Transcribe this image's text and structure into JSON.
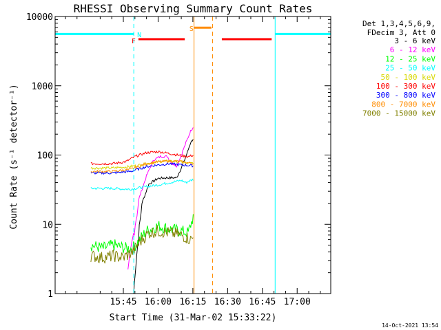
{
  "chart_data": {
    "type": "line",
    "title": "RHESSI Observing Summary Count Rates",
    "xlabel": "Start Time (31-Mar-02 15:33:22)",
    "ylabel": "Count Rate (s⁻¹ detector⁻¹)",
    "ylog": true,
    "ylim": [
      1,
      10000
    ],
    "xlim_minutes": [
      15.56,
      110.5
    ],
    "x_ticks": [
      {
        "label": "15:45",
        "minute": 45
      },
      {
        "label": "16:00",
        "minute": 60
      },
      {
        "label": "16:15",
        "minute": 75
      },
      {
        "label": "16:30",
        "minute": 90
      },
      {
        "label": "16:45",
        "minute": 105
      },
      {
        "label": "17:00",
        "minute": 120
      }
    ],
    "y_ticks": [
      "1",
      "10",
      "100",
      "1000",
      "10000"
    ],
    "legend": {
      "header": [
        "Det 1,3,4,5,6,9,",
        "FDecim 3, Att 0"
      ],
      "entries": [
        {
          "label": "3 - 6 keV",
          "color": "#000000"
        },
        {
          "label": "6 - 12 keV",
          "color": "#ff00ff"
        },
        {
          "label": "12 - 25 keV",
          "color": "#00ff00"
        },
        {
          "label": "25 - 50 keV",
          "color": "#00ffff"
        },
        {
          "label": "50 - 100 keV",
          "color": "#d8d800"
        },
        {
          "label": "100 - 300 keV",
          "color": "#ff0000"
        },
        {
          "label": "300 - 800 keV",
          "color": "#0000ff"
        },
        {
          "label": "800 - 7000 keV",
          "color": "#ff8c00"
        },
        {
          "label": "7000 - 15000 keV",
          "color": "#808000"
        }
      ]
    },
    "series": [
      {
        "name": "3 - 6 keV",
        "color": "#000000",
        "points": [
          [
            49.5,
            1
          ],
          [
            50,
            2
          ],
          [
            53,
            20
          ],
          [
            56,
            38
          ],
          [
            60,
            46
          ],
          [
            64,
            47
          ],
          [
            68,
            47
          ],
          [
            70,
            65
          ],
          [
            72,
            95
          ],
          [
            74,
            150
          ],
          [
            75.5,
            180
          ],
          [
            89,
            500
          ],
          [
            92,
            560
          ],
          [
            95,
            470
          ],
          [
            100,
            280
          ],
          [
            104,
            150
          ],
          [
            107,
            100
          ],
          [
            109,
            80
          ],
          [
            111,
            60
          ],
          [
            113,
            55
          ],
          [
            116,
            54
          ],
          [
            120,
            52
          ],
          [
            125,
            50
          ],
          [
            130,
            48
          ],
          [
            134,
            45
          ]
        ]
      },
      {
        "name": "6 - 12 keV",
        "color": "#ff00ff",
        "points": [
          [
            47,
            2
          ],
          [
            49,
            6
          ],
          [
            52,
            25
          ],
          [
            55,
            50
          ],
          [
            58,
            85
          ],
          [
            61,
            95
          ],
          [
            64,
            95
          ],
          [
            66,
            75
          ],
          [
            68,
            70
          ],
          [
            70,
            100
          ],
          [
            72,
            150
          ],
          [
            74,
            220
          ],
          [
            75.5,
            270
          ],
          [
            88,
            1150
          ],
          [
            92,
            1350
          ],
          [
            95,
            1100
          ],
          [
            100,
            550
          ],
          [
            104,
            260
          ],
          [
            107,
            130
          ],
          [
            109,
            80
          ],
          [
            110,
            20
          ],
          [
            111,
            8
          ],
          [
            113,
            5
          ],
          [
            115,
            3.5
          ],
          [
            118,
            3
          ]
        ]
      },
      {
        "name": "12 - 25 keV",
        "color": "#00ff00",
        "points": [
          [
            31,
            5
          ],
          [
            36,
            4.5
          ],
          [
            41,
            5
          ],
          [
            46,
            4.5
          ],
          [
            49,
            4.5
          ],
          [
            52,
            6
          ],
          [
            55,
            8
          ],
          [
            60,
            9.5
          ],
          [
            65,
            8.5
          ],
          [
            70,
            8
          ],
          [
            73,
            7.5
          ],
          [
            75.5,
            14
          ],
          [
            88,
            48
          ],
          [
            91,
            80
          ],
          [
            93,
            70
          ],
          [
            95,
            55
          ],
          [
            98,
            30
          ],
          [
            101,
            20
          ],
          [
            104,
            15
          ],
          [
            107,
            10.5
          ],
          [
            110,
            6
          ],
          [
            113,
            4
          ],
          [
            118,
            3
          ],
          [
            122,
            2.5
          ],
          [
            134,
            2.3
          ]
        ]
      },
      {
        "name": "25 - 50 keV",
        "color": "#00ffff",
        "points": [
          [
            31,
            33
          ],
          [
            40,
            33
          ],
          [
            48,
            32
          ],
          [
            55,
            35
          ],
          [
            60,
            37
          ],
          [
            65,
            40
          ],
          [
            70,
            43
          ],
          [
            72,
            40
          ],
          [
            75.5,
            45
          ],
          [
            88,
            37
          ],
          [
            92,
            34
          ],
          [
            98,
            33
          ],
          [
            105,
            33
          ],
          [
            110,
            32
          ],
          [
            118,
            32
          ],
          [
            125,
            31
          ],
          [
            134,
            31
          ]
        ]
      },
      {
        "name": "50 - 100 keV",
        "color": "#d8d800",
        "points": [
          [
            31,
            65
          ],
          [
            40,
            65
          ],
          [
            48,
            68
          ],
          [
            55,
            75
          ],
          [
            60,
            80
          ],
          [
            65,
            82
          ],
          [
            70,
            80
          ],
          [
            73,
            75
          ],
          [
            75.5,
            78
          ],
          [
            88,
            62
          ],
          [
            92,
            60
          ],
          [
            98,
            60
          ],
          [
            105,
            58
          ],
          [
            110,
            57
          ],
          [
            115,
            52
          ],
          [
            120,
            48
          ],
          [
            125,
            46
          ],
          [
            134,
            45
          ]
        ]
      },
      {
        "name": "100 - 300 keV",
        "color": "#ff0000",
        "points": [
          [
            31,
            75
          ],
          [
            40,
            75
          ],
          [
            46,
            80
          ],
          [
            50,
            95
          ],
          [
            55,
            108
          ],
          [
            60,
            112
          ],
          [
            65,
            105
          ],
          [
            70,
            98
          ],
          [
            73,
            95
          ],
          [
            75.5,
            100
          ],
          [
            88,
            88
          ],
          [
            92,
            92
          ],
          [
            98,
            95
          ],
          [
            105,
            90
          ],
          [
            110,
            80
          ],
          [
            115,
            70
          ],
          [
            120,
            66
          ],
          [
            125,
            64
          ],
          [
            134,
            64
          ]
        ]
      },
      {
        "name": "300 - 800 keV",
        "color": "#0000ff",
        "points": [
          [
            31,
            55
          ],
          [
            40,
            55
          ],
          [
            48,
            58
          ],
          [
            55,
            68
          ],
          [
            60,
            72
          ],
          [
            65,
            75
          ],
          [
            70,
            72
          ],
          [
            75.5,
            70
          ],
          [
            88,
            58
          ],
          [
            92,
            58
          ],
          [
            98,
            57
          ],
          [
            105,
            56
          ],
          [
            110,
            55
          ],
          [
            115,
            50
          ],
          [
            120,
            46
          ],
          [
            125,
            43
          ],
          [
            134,
            42
          ]
        ]
      },
      {
        "name": "800 - 7000 keV",
        "color": "#ff8c00",
        "points": [
          [
            31,
            58
          ],
          [
            40,
            58
          ],
          [
            48,
            62
          ],
          [
            55,
            75
          ],
          [
            60,
            80
          ],
          [
            65,
            82
          ],
          [
            70,
            80
          ],
          [
            75.5,
            75
          ],
          [
            88,
            62
          ],
          [
            92,
            60
          ],
          [
            98,
            60
          ],
          [
            105,
            58
          ],
          [
            110,
            56
          ],
          [
            115,
            52
          ],
          [
            120,
            48
          ],
          [
            125,
            45
          ],
          [
            134,
            43
          ]
        ]
      },
      {
        "name": "7000 - 15000 keV",
        "color": "#808000",
        "points": [
          [
            31,
            3.5
          ],
          [
            36,
            3.3
          ],
          [
            41,
            3.5
          ],
          [
            45,
            3.3
          ],
          [
            49,
            4
          ],
          [
            53,
            6
          ],
          [
            56,
            7.5
          ],
          [
            60,
            8
          ],
          [
            65,
            7.5
          ],
          [
            70,
            7
          ],
          [
            74,
            6
          ],
          [
            75.5,
            6.5
          ],
          [
            88,
            6.5
          ],
          [
            92,
            4.5
          ],
          [
            95,
            4.5
          ],
          [
            100,
            5.5
          ],
          [
            105,
            6
          ],
          [
            108,
            7
          ],
          [
            110,
            6
          ],
          [
            112,
            4.5
          ],
          [
            115,
            3.5
          ],
          [
            120,
            3.3
          ],
          [
            125,
            3.3
          ],
          [
            134,
            3.3
          ]
        ]
      }
    ],
    "bars": [
      {
        "label": "N",
        "color": "#00ffff",
        "level": 5600,
        "x_start": 15.56,
        "x_end": 49.5,
        "text_minute": 51,
        "text_level": 5500
      },
      {
        "label": "",
        "color": "#00ffff",
        "level": 5600,
        "x_start": 110.5,
        "x_end": 134.5
      },
      {
        "label": "F",
        "color": "#ff0000",
        "level": 4700,
        "x_start": 51.5,
        "x_end": 71.5,
        "text_minute": 48.5,
        "text_level": 4500
      },
      {
        "label": "",
        "color": "#ff0000",
        "level": 4700,
        "x_start": 87.5,
        "x_end": 109
      },
      {
        "label": "S",
        "color": "#ff8c00",
        "level": 6900,
        "x_start": 75.5,
        "x_end": 83,
        "text_minute": 73.5,
        "text_level": 6800
      }
    ],
    "vlines": [
      {
        "minute": 15.56,
        "color": "#00ffff",
        "style": "solid"
      },
      {
        "minute": 49.5,
        "color": "#00ffff",
        "style": "dashed"
      },
      {
        "minute": 75.5,
        "color": "#ff8c00",
        "style": "solid"
      },
      {
        "minute": 83.5,
        "color": "#ff8c00",
        "style": "dashed"
      },
      {
        "minute": 110.5,
        "color": "#00ffff",
        "style": "solid"
      },
      {
        "minute": 134.5,
        "color": "#00ffff",
        "style": "dashed"
      }
    ]
  },
  "footer": {
    "timestamp": "14-Oct-2021 13:54"
  }
}
